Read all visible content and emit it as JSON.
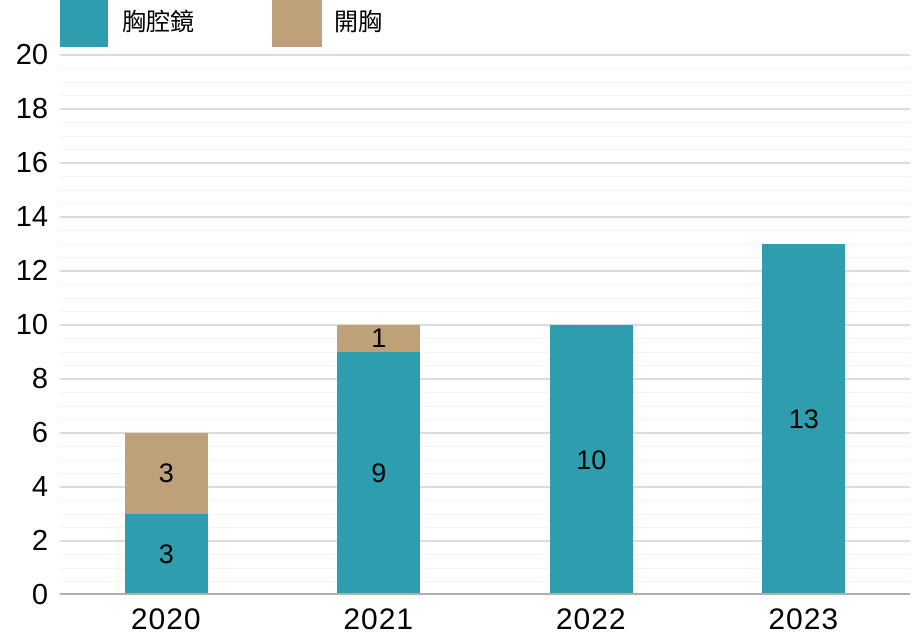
{
  "legend": {
    "items": [
      {
        "label": "胸腔鏡",
        "color": "#2E9DAE"
      },
      {
        "label": "開胸",
        "color": "#BFA179"
      }
    ]
  },
  "chart_data": {
    "type": "bar",
    "stacked": true,
    "title": "",
    "xlabel": "",
    "ylabel": "",
    "categories": [
      "2020",
      "2021",
      "2022",
      "2023"
    ],
    "series": [
      {
        "name": "胸腔鏡",
        "color": "#2E9DAE",
        "values": [
          3,
          9,
          10,
          13
        ]
      },
      {
        "name": "開胸",
        "color": "#BFA179",
        "values": [
          3,
          1,
          0,
          0
        ]
      }
    ],
    "totals": [
      6,
      10,
      10,
      13
    ],
    "ylim": [
      0,
      20
    ],
    "y_major_step": 2,
    "y_minor_step": 0.5,
    "y_tick_labels": [
      "0",
      "2",
      "4",
      "6",
      "8",
      "10",
      "12",
      "14",
      "16",
      "18",
      "20"
    ],
    "grid": true,
    "bar_value_labels_shown": true,
    "legend_position": "top-left"
  },
  "colors": {
    "background": "#FFFFFF",
    "axis_line": "#AFAFAF",
    "major_gridline": "#DCDCDC",
    "minor_gridline": "#F3F3F3",
    "label_text": "#000000"
  }
}
